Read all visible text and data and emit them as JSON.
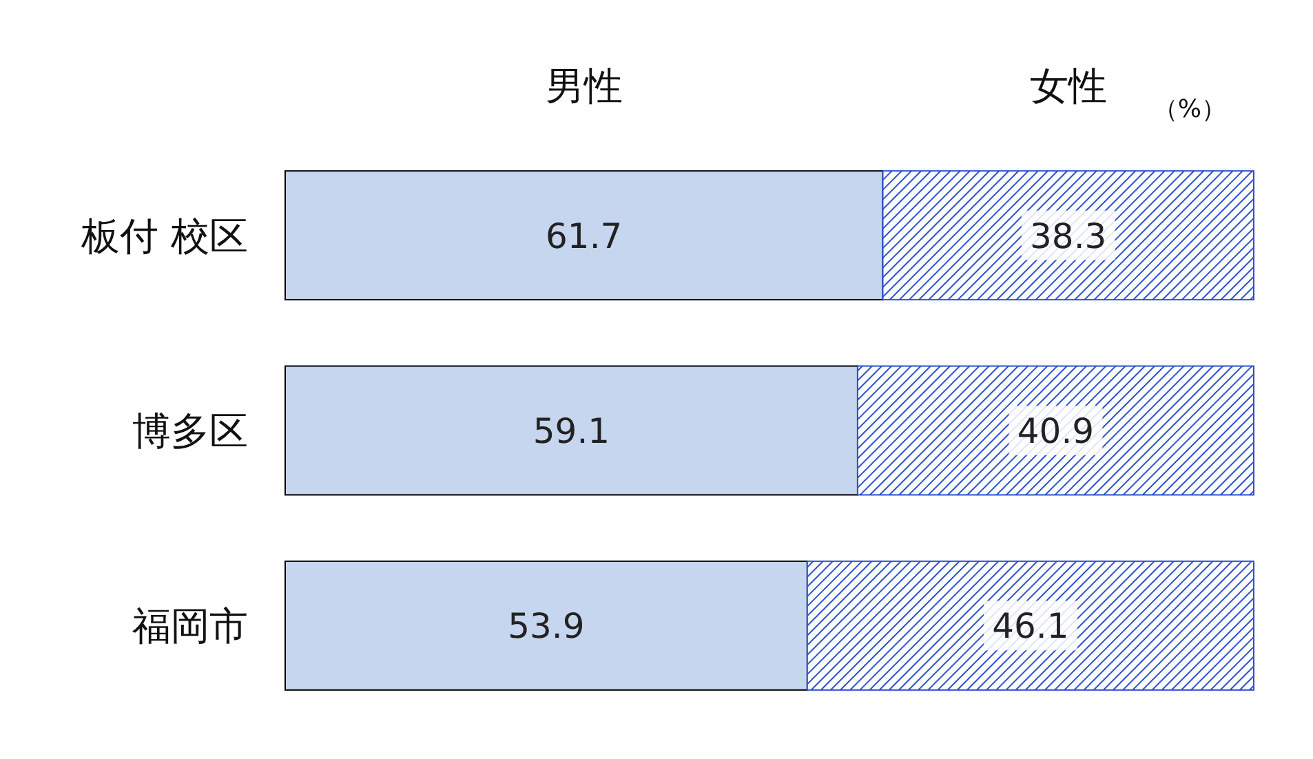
{
  "chart_data": {
    "type": "bar",
    "orientation": "horizontal",
    "stacked": true,
    "data_labels": true,
    "categories": [
      "板付 校区",
      "博多区",
      "福岡市"
    ],
    "series": [
      {
        "name": "男性",
        "color": "#c5d6ee",
        "values": [
          61.7,
          59.1,
          53.9
        ]
      },
      {
        "name": "女性",
        "color": "#2a50d0",
        "values": [
          38.3,
          40.9,
          46.1
        ]
      }
    ],
    "annotations": [
      "（%）"
    ],
    "legend": "top"
  }
}
